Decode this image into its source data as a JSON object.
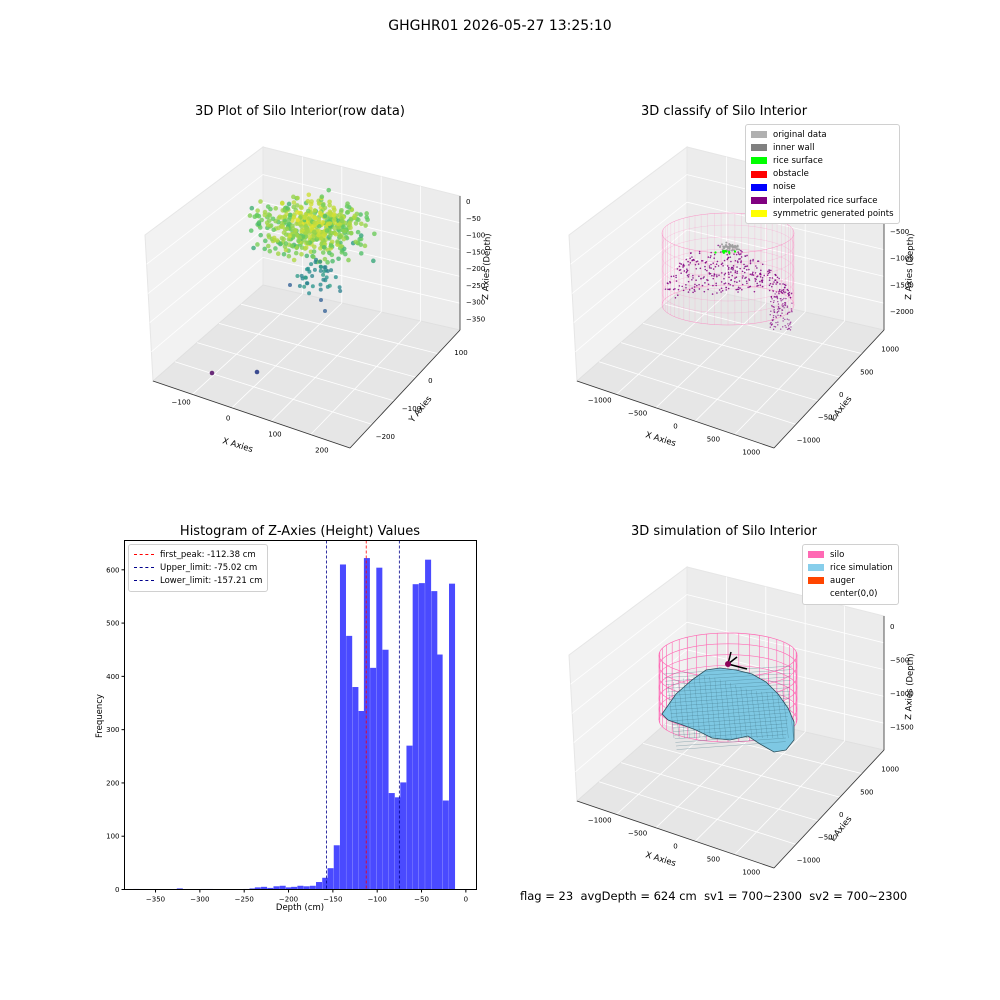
{
  "figure": {
    "suptitle": "GHGHR01 2026-05-27 13:25:10",
    "footer": {
      "flag": "flag = 23",
      "avg_depth": "avgDepth = 624 cm",
      "sv1": "sv1 = 700~2300",
      "sv2": "sv2 = 700~2300"
    }
  },
  "chart_data": [
    {
      "type": "scatter",
      "title": "3D Plot of Silo Interior(row data)",
      "xlabel": "X Axies",
      "ylabel": "Y Axies",
      "zlabel": "Z Axies (Depth)",
      "x_ticks": [
        "−100",
        "0",
        "100",
        "200"
      ],
      "y_ticks": [
        "100",
        "0",
        "−100",
        "−200"
      ],
      "z_ticks": [
        "0",
        "−50",
        "−100",
        "−150",
        "−200",
        "−250",
        "−300",
        "−350"
      ],
      "colormap": "viridis",
      "points_description": "dense cloud of yellow-green points near depth 0 to -150, sparse blue points deeper"
    },
    {
      "type": "scatter",
      "title": "3D classify of Silo Interior",
      "xlabel": "X Axies",
      "ylabel": "Y Axies",
      "zlabel": "Z Axies (Depth)",
      "x_ticks": [
        "−1000",
        "−500",
        "0",
        "500",
        "1000"
      ],
      "y_ticks": [
        "1000",
        "500",
        "0",
        "−500",
        "−1000"
      ],
      "z_ticks": [
        "0",
        "−500",
        "−1000",
        "−1500",
        "−2000"
      ],
      "legend": [
        {
          "label": "original data",
          "color": "#b0b0b0"
        },
        {
          "label": "inner wall",
          "color": "#808080"
        },
        {
          "label": "rice surface",
          "color": "#00ff00"
        },
        {
          "label": "obstacle",
          "color": "#ff0000"
        },
        {
          "label": "noise",
          "color": "#0000ff"
        },
        {
          "label": "interpolated rice surface",
          "color": "#800080"
        },
        {
          "label": "symmetric generated points",
          "color": "#ffff00"
        }
      ],
      "silo_color": "#ff69b4"
    },
    {
      "type": "bar",
      "title": "Histogram of Z-Axies (Height) Values",
      "xlabel": "Depth (cm)",
      "ylabel": "Frequency",
      "xlim": [
        -385,
        12
      ],
      "ylim": [
        0,
        655
      ],
      "x_ticks": [
        -350,
        -300,
        -250,
        -200,
        -150,
        -100,
        -50,
        0
      ],
      "y_ticks": [
        0,
        100,
        200,
        300,
        400,
        500,
        600
      ],
      "bin_width": 6.8,
      "bins": [
        [
          -375,
          1
        ],
        [
          -368,
          0
        ],
        [
          -361,
          0
        ],
        [
          -354,
          0
        ],
        [
          -347,
          0
        ],
        [
          -340,
          0
        ],
        [
          -333,
          0
        ],
        [
          -326,
          2
        ],
        [
          -320,
          0
        ],
        [
          -313,
          0
        ],
        [
          -306,
          0
        ],
        [
          -299,
          1
        ],
        [
          -292,
          1
        ],
        [
          -285,
          0
        ],
        [
          -279,
          0
        ],
        [
          -272,
          0
        ],
        [
          -265,
          0
        ],
        [
          -258,
          0
        ],
        [
          -251,
          1
        ],
        [
          -244,
          2
        ],
        [
          -238,
          4
        ],
        [
          -231,
          5
        ],
        [
          -224,
          3
        ],
        [
          -217,
          6
        ],
        [
          -210,
          7
        ],
        [
          -203,
          4
        ],
        [
          -197,
          5
        ],
        [
          -190,
          7
        ],
        [
          -183,
          6
        ],
        [
          -176,
          7
        ],
        [
          -169,
          14
        ],
        [
          -162,
          22
        ],
        [
          -156,
          40
        ],
        [
          -149,
          83
        ],
        [
          -142,
          610
        ],
        [
          -135,
          476
        ],
        [
          -128,
          380
        ],
        [
          -121,
          335
        ],
        [
          -115,
          622
        ],
        [
          -108,
          416
        ],
        [
          -101,
          604
        ],
        [
          -94,
          450
        ],
        [
          -87,
          181
        ],
        [
          -80,
          173
        ],
        [
          -74,
          201
        ],
        [
          -67,
          270
        ],
        [
          -60,
          573
        ],
        [
          -53,
          575
        ],
        [
          -46,
          619
        ],
        [
          -39,
          560
        ],
        [
          -33,
          441
        ],
        [
          -26,
          167
        ],
        [
          -19,
          574
        ]
      ],
      "bar_color": "#4a4aff",
      "lines": [
        {
          "label": "first_peak: -112.38 cm",
          "x": -112.38,
          "color": "#ff0000"
        },
        {
          "label": "Upper_limit: -75.02 cm",
          "x": -75.02,
          "color": "#00008b"
        },
        {
          "label": "Lower_limit: -157.21 cm",
          "x": -157.21,
          "color": "#00008b"
        }
      ]
    },
    {
      "type": "surface",
      "title": "3D simulation of Silo Interior",
      "xlabel": "X Axies",
      "ylabel": "Y Axies",
      "zlabel": "Z Axies (Depth)",
      "x_ticks": [
        "−1000",
        "−500",
        "0",
        "500",
        "1000"
      ],
      "y_ticks": [
        "1000",
        "500",
        "0",
        "−500",
        "−1000"
      ],
      "z_ticks": [
        "0",
        "−500",
        "−1000",
        "−1500"
      ],
      "legend": [
        {
          "label": "silo",
          "color": "#ff69b4"
        },
        {
          "label": "rice simulation",
          "color": "#87ceeb"
        },
        {
          "label": "auger",
          "color": "#ff4500"
        },
        {
          "label": "center(0,0)",
          "color": "#ffffff"
        }
      ]
    }
  ]
}
